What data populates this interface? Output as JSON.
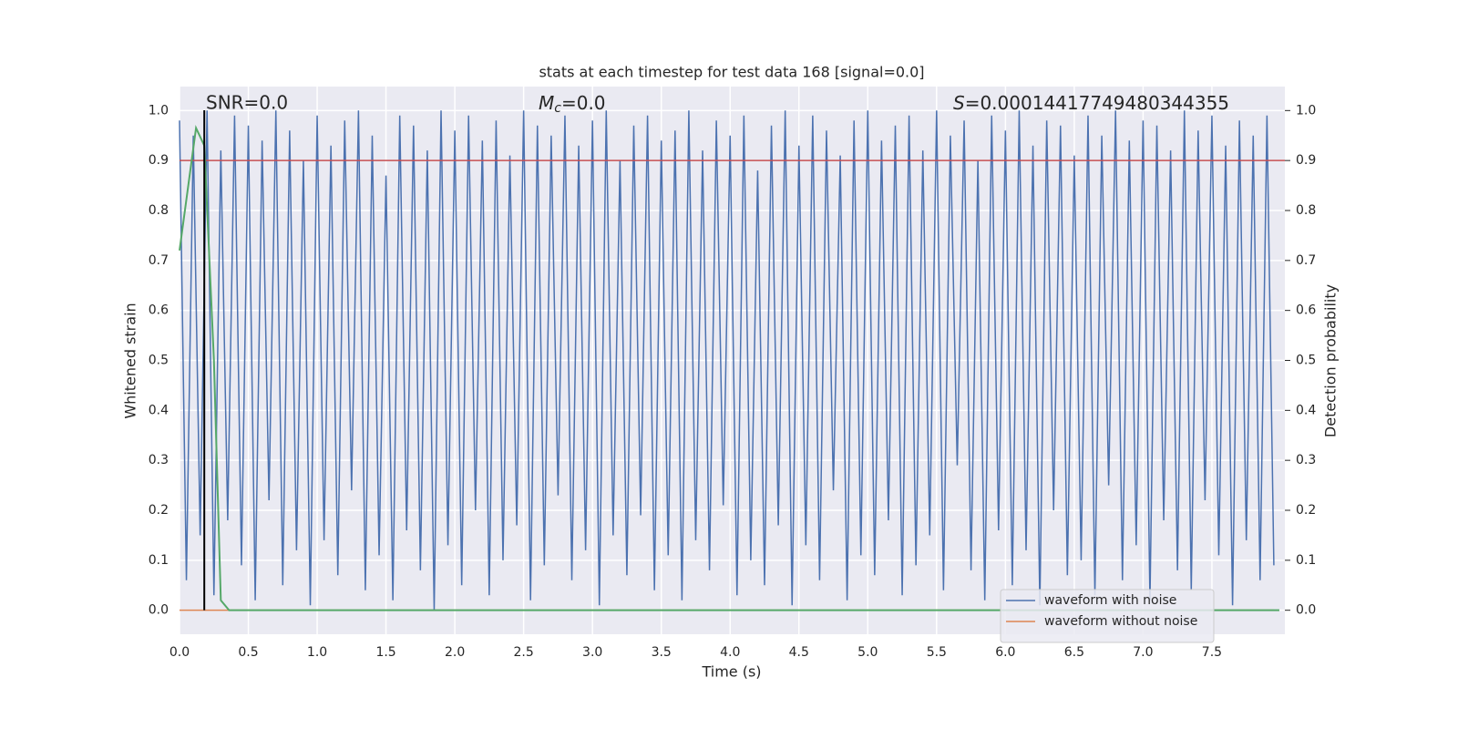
{
  "chart_data": {
    "type": "line",
    "title": "stats at each timestep for test data 168 [signal=0.0]",
    "xlabel": "Time (s)",
    "ylabel": "Whitened strain",
    "y2label": "Detection probability",
    "annotations": {
      "snr": "SNR=0.0",
      "mc": {
        "symbol": "M",
        "subscript": "c",
        "text": "=0.0"
      },
      "s": {
        "symbol": "S",
        "text": "=0.00014417749480344355"
      }
    },
    "xlim": [
      0,
      8.03
    ],
    "ylim": [
      -0.048,
      1.048
    ],
    "y2lim": [
      -0.048,
      1.048
    ],
    "xticks": [
      {
        "value": 0,
        "label": "0.0"
      },
      0.5,
      {
        "value": 1,
        "label": "1.0"
      },
      1.5,
      {
        "value": 2,
        "label": "2.0"
      },
      2.5,
      {
        "value": 3,
        "label": "3.0"
      },
      3.5,
      {
        "value": 4,
        "label": "4.0"
      },
      4.5,
      {
        "value": 5,
        "label": "5.0"
      },
      5.5,
      {
        "value": 6,
        "label": "6.0"
      },
      6.5,
      {
        "value": 7,
        "label": "7.0"
      },
      7.5
    ],
    "yticks": [
      {
        "value": 0,
        "label": "0.0"
      },
      0.1,
      0.2,
      0.3,
      0.4,
      0.5,
      0.6,
      0.7,
      0.8,
      0.9,
      {
        "value": 1,
        "label": "1.0"
      }
    ],
    "y2ticks": [
      {
        "value": 0,
        "label": "0.0"
      },
      0.1,
      0.2,
      0.3,
      0.4,
      0.5,
      0.6,
      0.7,
      0.8,
      0.9,
      {
        "value": 1,
        "label": "1.0"
      }
    ],
    "grid": true,
    "legend": "lower right",
    "series": [
      {
        "name": "waveform with noise",
        "color": "#4c72b0",
        "x": [
          0,
          0.05,
          0.1,
          0.15,
          0.2,
          0.25,
          0.3,
          0.35,
          0.4,
          0.45,
          0.5,
          0.55,
          0.6,
          0.65,
          0.7,
          0.75,
          0.8,
          0.85,
          0.9,
          0.95,
          1,
          1.05,
          1.1,
          1.15,
          1.2,
          1.25,
          1.3,
          1.35,
          1.4,
          1.45,
          1.5,
          1.55,
          1.6,
          1.65,
          1.7,
          1.75,
          1.8,
          1.85,
          1.9,
          1.95,
          2,
          2.05,
          2.1,
          2.15,
          2.2,
          2.25,
          2.3,
          2.35,
          2.4,
          2.45,
          2.5,
          2.55,
          2.6,
          2.65,
          2.7,
          2.75,
          2.8,
          2.85,
          2.9,
          2.95,
          3,
          3.05,
          3.1,
          3.15,
          3.2,
          3.25,
          3.3,
          3.35,
          3.4,
          3.45,
          3.5,
          3.55,
          3.6,
          3.65,
          3.7,
          3.75,
          3.8,
          3.85,
          3.9,
          3.95,
          4,
          4.05,
          4.1,
          4.15,
          4.2,
          4.25,
          4.3,
          4.35,
          4.4,
          4.45,
          4.5,
          4.55,
          4.6,
          4.65,
          4.7,
          4.75,
          4.8,
          4.85,
          4.9,
          4.95,
          5,
          5.05,
          5.1,
          5.15,
          5.2,
          5.25,
          5.3,
          5.35,
          5.4,
          5.45,
          5.5,
          5.55,
          5.6,
          5.65,
          5.7,
          5.75,
          5.8,
          5.85,
          5.9,
          5.95,
          6,
          6.05,
          6.1,
          6.15,
          6.2,
          6.25,
          6.3,
          6.35,
          6.4,
          6.45,
          6.5,
          6.55,
          6.6,
          6.65,
          6.7,
          6.75,
          6.8,
          6.85,
          6.9,
          6.95,
          7,
          7.05,
          7.1,
          7.15,
          7.2,
          7.25,
          7.3,
          7.35,
          7.4,
          7.45,
          7.5,
          7.55,
          7.6,
          7.65,
          7.7,
          7.75,
          7.8,
          7.85,
          7.9,
          7.95
        ],
        "values": [
          0.98,
          0.06,
          0.95,
          0.15,
          1.0,
          0.03,
          0.92,
          0.18,
          0.99,
          0.09,
          0.97,
          0.02,
          0.94,
          0.22,
          1.0,
          0.05,
          0.96,
          0.12,
          0.9,
          0.01,
          0.99,
          0.14,
          0.93,
          0.07,
          0.98,
          0.24,
          1.0,
          0.04,
          0.95,
          0.11,
          0.87,
          0.02,
          0.99,
          0.16,
          0.97,
          0.08,
          0.92,
          0.0,
          1.0,
          0.13,
          0.96,
          0.05,
          0.99,
          0.2,
          0.94,
          0.03,
          0.98,
          0.1,
          0.91,
          0.17,
          1.0,
          0.02,
          0.97,
          0.09,
          0.95,
          0.23,
          0.99,
          0.06,
          0.93,
          0.12,
          0.98,
          0.01,
          1.0,
          0.15,
          0.9,
          0.07,
          0.97,
          0.19,
          0.99,
          0.04,
          0.94,
          0.11,
          0.96,
          0.02,
          1.0,
          0.14,
          0.92,
          0.08,
          0.98,
          0.21,
          0.95,
          0.03,
          0.99,
          0.1,
          0.88,
          0.05,
          0.97,
          0.17,
          1.0,
          0.01,
          0.93,
          0.13,
          0.99,
          0.06,
          0.96,
          0.24,
          0.91,
          0.02,
          0.98,
          0.11,
          1.0,
          0.07,
          0.94,
          0.18,
          0.97,
          0.03,
          0.99,
          0.09,
          0.92,
          0.15,
          1.0,
          0.04,
          0.95,
          0.29,
          0.98,
          0.08,
          0.9,
          0.02,
          0.99,
          0.16,
          0.96,
          0.05,
          1.0,
          0.12,
          0.93,
          0.01,
          0.98,
          0.2,
          0.97,
          0.07,
          0.91,
          0.1,
          0.99,
          0.03,
          0.95,
          0.25,
          1.0,
          0.06,
          0.94,
          0.13,
          0.98,
          0.02,
          0.97,
          0.18,
          0.92,
          0.08,
          1.0,
          0.04,
          0.96,
          0.22,
          0.99,
          0.11,
          0.93,
          0.01,
          0.98,
          0.14,
          0.95,
          0.06,
          0.99,
          0.09
        ]
      },
      {
        "name": "waveform without noise",
        "color": "#dd8452",
        "x": [
          0,
          7.95
        ],
        "values": [
          0,
          0
        ]
      }
    ],
    "detection_probability": {
      "color": "#55a868",
      "axis": "y2",
      "x": [
        0,
        0.12,
        0.18,
        0.25,
        0.3,
        0.36,
        7.99
      ],
      "values": [
        0.72,
        0.965,
        0.93,
        0.5,
        0.02,
        0.0,
        0.0
      ]
    },
    "threshold_line": {
      "value": 0.9,
      "color": "#c44e52",
      "axis": "y2"
    },
    "vline": {
      "x": 0.18,
      "color": "#000000"
    }
  }
}
